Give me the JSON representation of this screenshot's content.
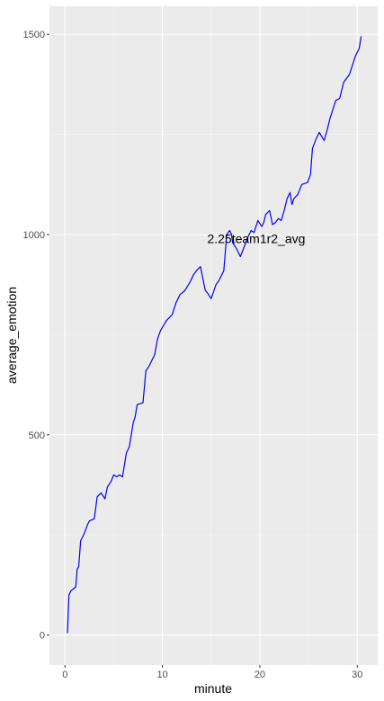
{
  "chart_data": {
    "type": "line",
    "xlabel": "minute",
    "ylabel": "average_emotion",
    "xlim": [
      -1.6,
      32.1
    ],
    "ylim": [
      -75,
      1570
    ],
    "x_ticks": [
      0,
      10,
      20,
      30
    ],
    "y_ticks": [
      0,
      500,
      1000,
      1500
    ],
    "x_minor_ticks": [
      5,
      15,
      25
    ],
    "y_minor_ticks": [
      250,
      750,
      1250
    ],
    "grid": true,
    "background": "#ebebeb",
    "annotations": [
      {
        "text": "2.25team1r2_avg",
        "x": 14.6,
        "y": 990
      }
    ],
    "series": [
      {
        "color": "#0000ff",
        "x": [
          0.25,
          0.4,
          0.6,
          1.1,
          1.25,
          1.4,
          1.6,
          2.0,
          2.3,
          2.5,
          3.0,
          3.3,
          3.7,
          4.1,
          4.35,
          4.5,
          4.75,
          5.0,
          5.3,
          5.6,
          5.9,
          6.3,
          6.6,
          7.0,
          7.2,
          7.4,
          8.0,
          8.3,
          8.6,
          9.2,
          9.5,
          9.8,
          10.4,
          11.0,
          11.4,
          11.8,
          12.3,
          12.8,
          13.2,
          13.5,
          13.9,
          14.4,
          14.6,
          15.0,
          15.5,
          15.8,
          16.3,
          16.6,
          16.9,
          17.1,
          17.2,
          17.6,
          18.0,
          18.4,
          18.7,
          19.1,
          19.4,
          19.8,
          20.2,
          20.4,
          20.6,
          21.0,
          21.3,
          21.6,
          21.9,
          22.2,
          22.5,
          22.8,
          23.1,
          23.3,
          23.5,
          23.9,
          24.3,
          24.9,
          25.2,
          25.4,
          25.8,
          26.1,
          26.6,
          26.9,
          27.2,
          27.8,
          28.2,
          28.6,
          28.9,
          29.2,
          29.8,
          30.2,
          30.4
        ],
        "y": [
          5,
          100,
          110,
          120,
          165,
          170,
          235,
          255,
          275,
          285,
          290,
          345,
          355,
          340,
          370,
          375,
          385,
          400,
          395,
          400,
          395,
          455,
          470,
          530,
          545,
          575,
          580,
          660,
          670,
          700,
          740,
          760,
          785,
          800,
          830,
          850,
          860,
          880,
          900,
          910,
          920,
          860,
          855,
          840,
          875,
          885,
          910,
          1000,
          1010,
          1000,
          980,
          965,
          945,
          970,
          990,
          1010,
          1005,
          1035,
          1020,
          1030,
          1050,
          1060,
          1025,
          1030,
          1040,
          1035,
          1060,
          1090,
          1105,
          1075,
          1090,
          1100,
          1125,
          1130,
          1150,
          1215,
          1240,
          1255,
          1235,
          1260,
          1290,
          1335,
          1340,
          1380,
          1390,
          1400,
          1445,
          1465,
          1495
        ]
      }
    ]
  }
}
